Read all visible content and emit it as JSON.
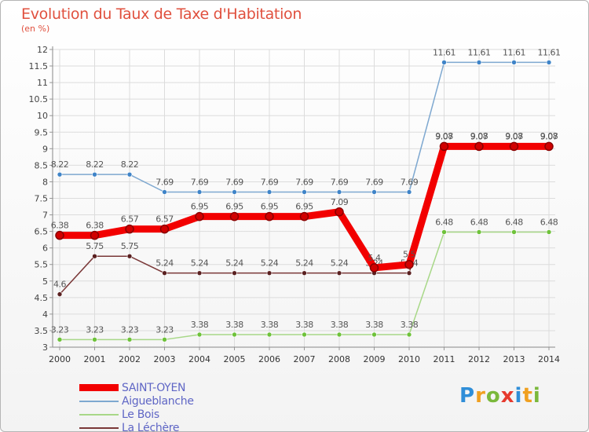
{
  "header": {
    "title": "Evolution du Taux de Taxe d'Habitation",
    "subtitle": "(en %)"
  },
  "logo": {
    "letters": [
      "P",
      "r",
      "o",
      "x",
      "i",
      "t",
      "i"
    ],
    "colors": [
      "#2f8ed8",
      "#f0a020",
      "#7ab83b",
      "#e63a2e",
      "#2f8ed8",
      "#f0a020",
      "#7ab83b"
    ]
  },
  "chart_data": {
    "type": "line",
    "x": [
      "2000",
      "2001",
      "2002",
      "2003",
      "2004",
      "2005",
      "2006",
      "2007",
      "2008",
      "2009",
      "2010",
      "2011",
      "2012",
      "2013",
      "2014"
    ],
    "ylim": [
      3,
      12
    ],
    "yticks": [
      "3",
      "3.5",
      "4",
      "4.5",
      "5",
      "5.5",
      "6",
      "6.5",
      "7",
      "7.5",
      "8",
      "8.5",
      "9",
      "9.5",
      "10",
      "10.5",
      "11",
      "11.5",
      "12"
    ],
    "grid": true,
    "legend_position": "bottom-left",
    "series": [
      {
        "name": "SAINT-OYEN",
        "color": "#f20000",
        "marker_color": "#b00000",
        "thick": true,
        "values": [
          6.38,
          6.38,
          6.57,
          6.57,
          6.95,
          6.95,
          6.95,
          6.95,
          7.09,
          5.4,
          5.5,
          9.07,
          9.07,
          9.07,
          9.07
        ],
        "labels": [
          "6.38",
          "6.38",
          "6.57",
          "6.57",
          "6.95",
          "6.95",
          "6.95",
          "6.95",
          "7.09",
          "5.4",
          "5.5",
          "9.07",
          "9.07",
          "9.07",
          "9.07"
        ]
      },
      {
        "name": "Aigueblanche",
        "color": "#7ea8d0",
        "marker_color": "#3f84c8",
        "thick": false,
        "values": [
          8.22,
          8.22,
          8.22,
          7.69,
          7.69,
          7.69,
          7.69,
          7.69,
          7.69,
          7.69,
          7.69,
          11.61,
          11.61,
          11.61,
          11.61
        ],
        "labels": [
          "8.22",
          "8.22",
          "8.22",
          "7.69",
          "7.69",
          "7.69",
          "7.69",
          "7.69",
          "7.69",
          "7.69",
          "7.69",
          "11.61",
          "11.61",
          "11.61",
          "11.61"
        ]
      },
      {
        "name": "Le Bois",
        "color": "#a8d888",
        "marker_color": "#6ec23a",
        "thick": false,
        "values": [
          3.23,
          3.23,
          3.23,
          3.23,
          3.38,
          3.38,
          3.38,
          3.38,
          3.38,
          3.38,
          3.38,
          6.48,
          6.48,
          6.48,
          6.48
        ],
        "labels": [
          "3.23",
          "3.23",
          "3.23",
          "3.23",
          "3.38",
          "3.38",
          "3.38",
          "3.38",
          "3.38",
          "3.38",
          "3.38",
          "6.48",
          "6.48",
          "6.48",
          "6.48"
        ]
      },
      {
        "name": "La Léchère",
        "color": "#7a3838",
        "marker_color": "#5a2020",
        "thick": false,
        "values": [
          4.6,
          5.75,
          5.75,
          5.24,
          5.24,
          5.24,
          5.24,
          5.24,
          5.24,
          5.24,
          5.24,
          9.08,
          9.08,
          9.08,
          9.08
        ],
        "labels": [
          "4.6",
          "5.75",
          "5.75",
          "5.24",
          "5.24",
          "5.24",
          "5.24",
          "5.24",
          "5.24",
          "5.24",
          "5.24",
          "9.08",
          "9.08",
          "9.08",
          "9.08"
        ]
      }
    ]
  }
}
